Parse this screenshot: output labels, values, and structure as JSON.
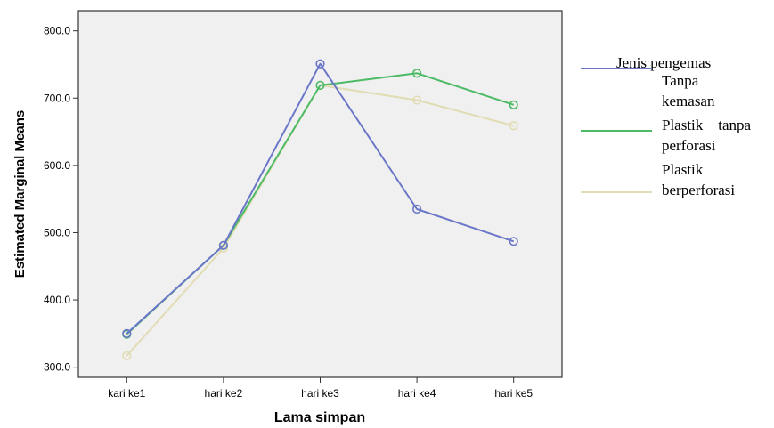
{
  "chart_data": {
    "type": "line",
    "xlabel": "Lama simpan",
    "ylabel": "Estimated Marginal Means",
    "categories": [
      "kari ke1",
      "hari ke2",
      "hari ke3",
      "hari ke4",
      "hari ke5"
    ],
    "y_tick_labels": [
      "300.0",
      "400.0",
      "500.0",
      "600.0",
      "700.0",
      "800.0"
    ],
    "ylim": [
      285,
      830
    ],
    "grid": false,
    "legend_position": "right",
    "legend_title": "Jenis pengemas",
    "series": [
      {
        "name": "Tanpa kemasan",
        "color": "#6b77c8",
        "values": [
          350,
          481,
          751,
          535,
          487
        ]
      },
      {
        "name": "Plastik tanpa perforasi",
        "color": "#4dbb66",
        "values": [
          349,
          481,
          719,
          737,
          690
        ]
      },
      {
        "name": "Plastik berperforasi",
        "color": "#e2dcb4",
        "values": [
          317,
          477,
          719,
          697,
          659
        ]
      }
    ],
    "legend_lines": [
      {
        "series": 0,
        "lines": [
          "Tanpa",
          "kemasan"
        ]
      },
      {
        "series": 1,
        "lines": [
          "Plastik    tanpa",
          "perforasi"
        ]
      },
      {
        "series": 2,
        "lines": [
          "Plastik",
          "berperforasi"
        ]
      }
    ]
  }
}
